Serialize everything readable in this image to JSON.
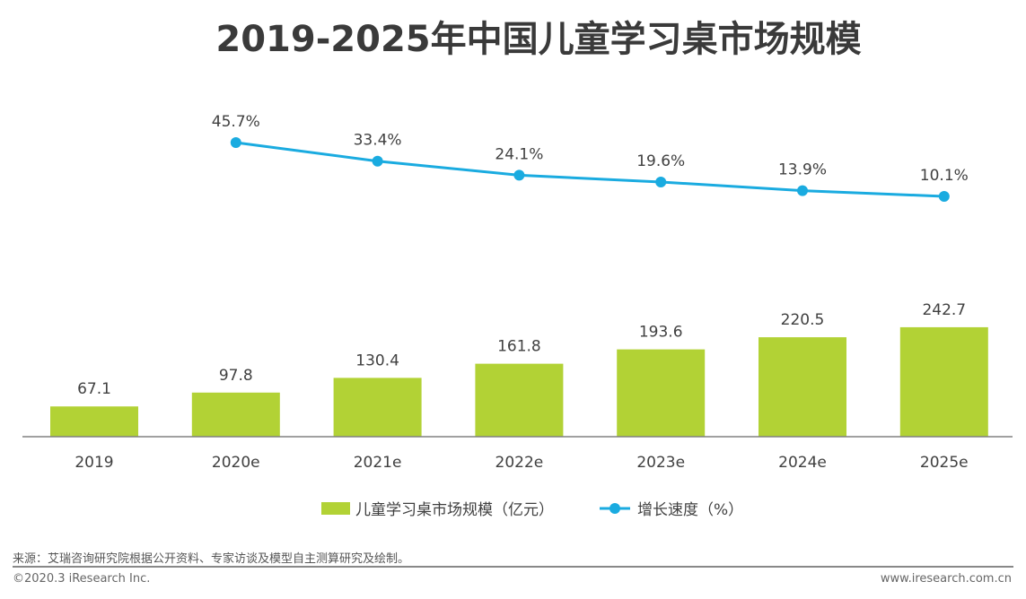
{
  "chart_data": {
    "type": "bar+line",
    "title": "2019-2025年中国儿童学习桌市场规模",
    "categories": [
      "2019",
      "2020e",
      "2021e",
      "2022e",
      "2023e",
      "2024e",
      "2025e"
    ],
    "series": [
      {
        "name": "儿童学习桌市场规模（亿元）",
        "type": "bar",
        "color": "#b2d235",
        "values": [
          67.1,
          97.8,
          130.4,
          161.8,
          193.6,
          220.5,
          242.7
        ],
        "labels": [
          "67.1",
          "97.8",
          "130.4",
          "161.8",
          "193.6",
          "220.5",
          "242.7"
        ]
      },
      {
        "name": "增长速度（%）",
        "type": "line",
        "color": "#1aabe0",
        "values": [
          null,
          45.7,
          33.4,
          24.1,
          19.6,
          13.9,
          10.1
        ],
        "labels": [
          null,
          "45.7%",
          "33.4%",
          "24.1%",
          "19.6%",
          "13.9%",
          "10.1%"
        ]
      }
    ],
    "legend": "bottom",
    "grid": false
  },
  "footer": {
    "source": "来源：艾瑞咨询研究院根据公开资料、专家访谈及模型自主测算研究及绘制。",
    "copyright": "©2020.3 iResearch Inc.",
    "website": "www.iresearch.com.cn"
  }
}
